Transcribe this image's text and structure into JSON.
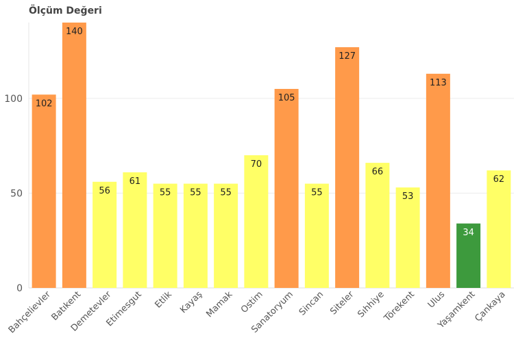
{
  "chart_data": {
    "type": "bar",
    "title": "Ölçüm Değeri",
    "xlabel": "",
    "ylabel": "",
    "ylim": [
      0,
      140
    ],
    "yticks": [
      0,
      50,
      100
    ],
    "grid": "horizontal",
    "legend": "none",
    "categories": [
      "Bahçelievler",
      "Batıkent",
      "Demetevler",
      "Etimesgut",
      "Etlik",
      "Kayaş",
      "Mamak",
      "Ostim",
      "Sanatoryum",
      "Sincan",
      "Siteler",
      "Sıhhiye",
      "Törekent",
      "Ulus",
      "Yaşamkent",
      "Çankaya"
    ],
    "values": [
      102,
      140,
      56,
      61,
      55,
      55,
      55,
      70,
      105,
      55,
      127,
      66,
      53,
      113,
      34,
      62
    ],
    "data_labels": [
      "102",
      "140",
      "56",
      "61",
      "55",
      "55",
      "55",
      "70",
      "105",
      "55",
      "127",
      "66",
      "53",
      "113",
      "34",
      "62"
    ],
    "bar_colors": [
      "#ff9a4a",
      "#ff9a4a",
      "#ffff66",
      "#ffff66",
      "#ffff66",
      "#ffff66",
      "#ffff66",
      "#ffff66",
      "#ff9a4a",
      "#ffff66",
      "#ff9a4a",
      "#ffff66",
      "#ffff66",
      "#ff9a4a",
      "#3d9a3d",
      "#ffff66"
    ],
    "label_colors": [
      "#222222",
      "#222222",
      "#222222",
      "#222222",
      "#222222",
      "#222222",
      "#222222",
      "#222222",
      "#222222",
      "#222222",
      "#222222",
      "#222222",
      "#222222",
      "#222222",
      "#ffffff",
      "#222222"
    ]
  }
}
